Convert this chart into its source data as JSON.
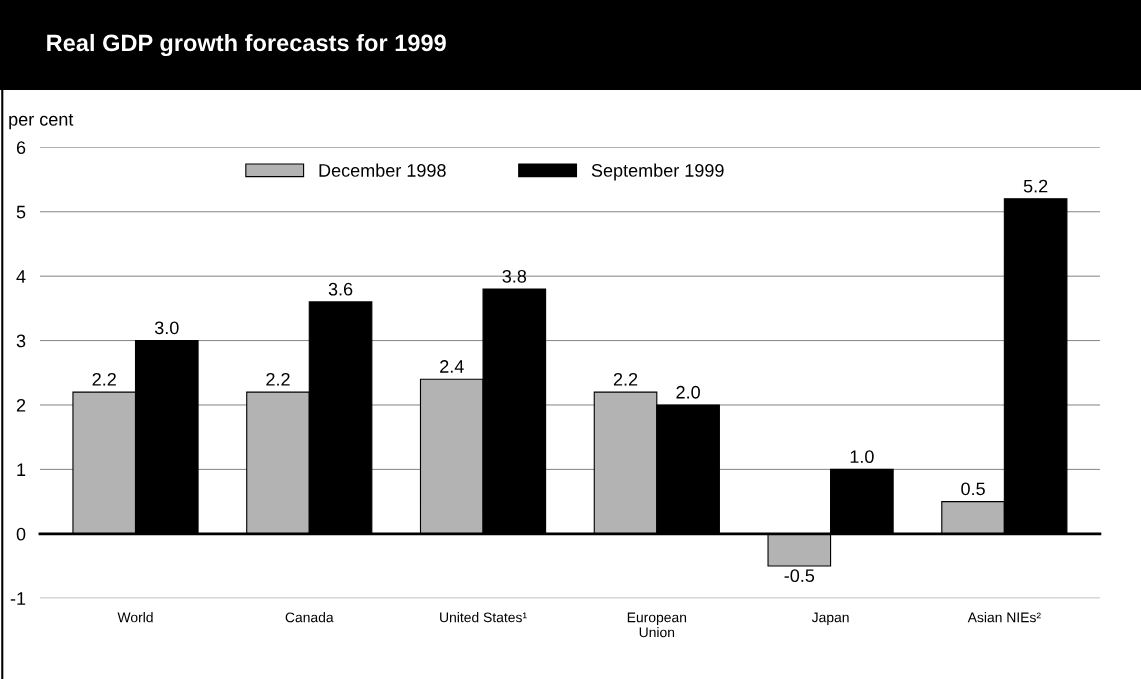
{
  "chart_data": {
    "type": "bar",
    "title": "Real GDP growth forecasts for 1999",
    "ylabel": "per cent",
    "categories": [
      "World",
      "Canada",
      "United States¹",
      "European\nUnion",
      "Japan",
      "Asian NIEs²"
    ],
    "series": [
      {
        "name": "December 1998",
        "color": "#b3b3b3",
        "values": [
          2.2,
          2.2,
          2.4,
          2.2,
          -0.5,
          0.5
        ],
        "value_labels": [
          "2.2",
          "2.2",
          "2.4",
          "2.2",
          "-0.5",
          "0.5"
        ]
      },
      {
        "name": "September 1999",
        "color": "#000000",
        "values": [
          3.0,
          3.6,
          3.8,
          2.0,
          1.0,
          5.2
        ],
        "value_labels": [
          "3.0",
          "3.6",
          "3.8",
          "2.0",
          "1.0",
          "5.2"
        ]
      }
    ],
    "ylim": [
      -1,
      6
    ],
    "yticks": [
      -1,
      0,
      1,
      2,
      3,
      4,
      5,
      6
    ],
    "grid": "y",
    "legend": "top"
  }
}
